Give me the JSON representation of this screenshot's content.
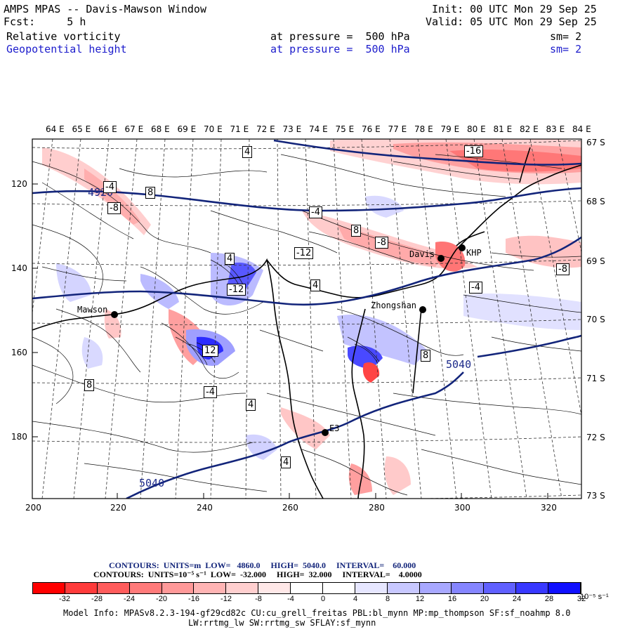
{
  "header": {
    "title": "AMPS MPAS -- Davis-Mawson Window",
    "forecast": "Fcst:     5 h",
    "init": "Init: 00 UTC Mon 29 Sep 25",
    "valid": "Valid: 05 UTC Mon 29 Sep 25",
    "field1_name": "Relative vorticity",
    "field1_level": "at pressure =  500 hPa",
    "field1_sm": "sm= 2",
    "field2_name": "Geopotential height",
    "field2_level": "at pressure =  500 hPa",
    "field2_sm": "sm= 2"
  },
  "map": {
    "top_lon_labels": [
      "64 E",
      "65 E",
      "66 E",
      "67 E",
      "68 E",
      "69 E",
      "70 E",
      "71 E",
      "72 E",
      "73 E",
      "74 E",
      "75 E",
      "76 E",
      "77 E",
      "78 E",
      "79 E",
      "80 E",
      "81 E",
      "82 E",
      "83 E",
      "84 E"
    ],
    "right_lat_labels": [
      "67 S",
      "68 S",
      "69 S",
      "70 S",
      "71 S",
      "72 S",
      "73 S"
    ],
    "left_axis_labels": [
      "120",
      "140",
      "160",
      "180"
    ],
    "bottom_axis_labels": [
      "200",
      "220",
      "240",
      "260",
      "280",
      "300",
      "320"
    ],
    "stations": [
      {
        "name": "Mawson"
      },
      {
        "name": "Zhongshan"
      },
      {
        "name": "Davis"
      },
      {
        "name": "KHP"
      },
      {
        "name": "E3"
      }
    ],
    "height_contour_labels": [
      "4920",
      "5040",
      "5040"
    ],
    "vorticity_labels": [
      "4",
      "-4",
      "8",
      "-8",
      "-12",
      "-16",
      "12",
      "-4",
      "4",
      "8",
      "-8",
      "-12",
      "4",
      "8",
      "-4",
      "-8",
      "-4",
      "4",
      "8",
      "4"
    ]
  },
  "contours_info": {
    "line1": "CONTOURS:  UNITS=m  LOW=   4860.0     HIGH=  5040.0     INTERVAL=    60.000",
    "line2": "CONTOURS:  UNITS=10⁻⁵ s⁻¹  LOW=  -32.000     HIGH=  32.000     INTERVAL=    4.0000"
  },
  "colorbar": {
    "labels": [
      "-32",
      "-28",
      "-24",
      "-20",
      "-16",
      "-12",
      "-8",
      "-4",
      "0",
      "4",
      "8",
      "12",
      "16",
      "20",
      "24",
      "28",
      "32"
    ],
    "unit": "10⁻⁵ s⁻¹",
    "colors": [
      "#ff0000",
      "#ff3b3b",
      "#ff5c5c",
      "#ff7a7a",
      "#ff9999",
      "#ffb4b4",
      "#ffcfcf",
      "#ffe8e8",
      "#ffffff",
      "#ffffff",
      "#e6e6ff",
      "#c8c8ff",
      "#a8a8ff",
      "#8585ff",
      "#6060ff",
      "#3838ff",
      "#0f0fff"
    ]
  },
  "footer": {
    "model_info": "Model Info: MPASv8.2.3-194-gf29cd82c CU:cu_grell_freitas PBL:bl_mynn MP:mp_thompson SF:sf_noahmp 8.0",
    "model_info2": "LW:rrtmg_lw SW:rrtmg_sw SFLAY:sf_mynn"
  }
}
